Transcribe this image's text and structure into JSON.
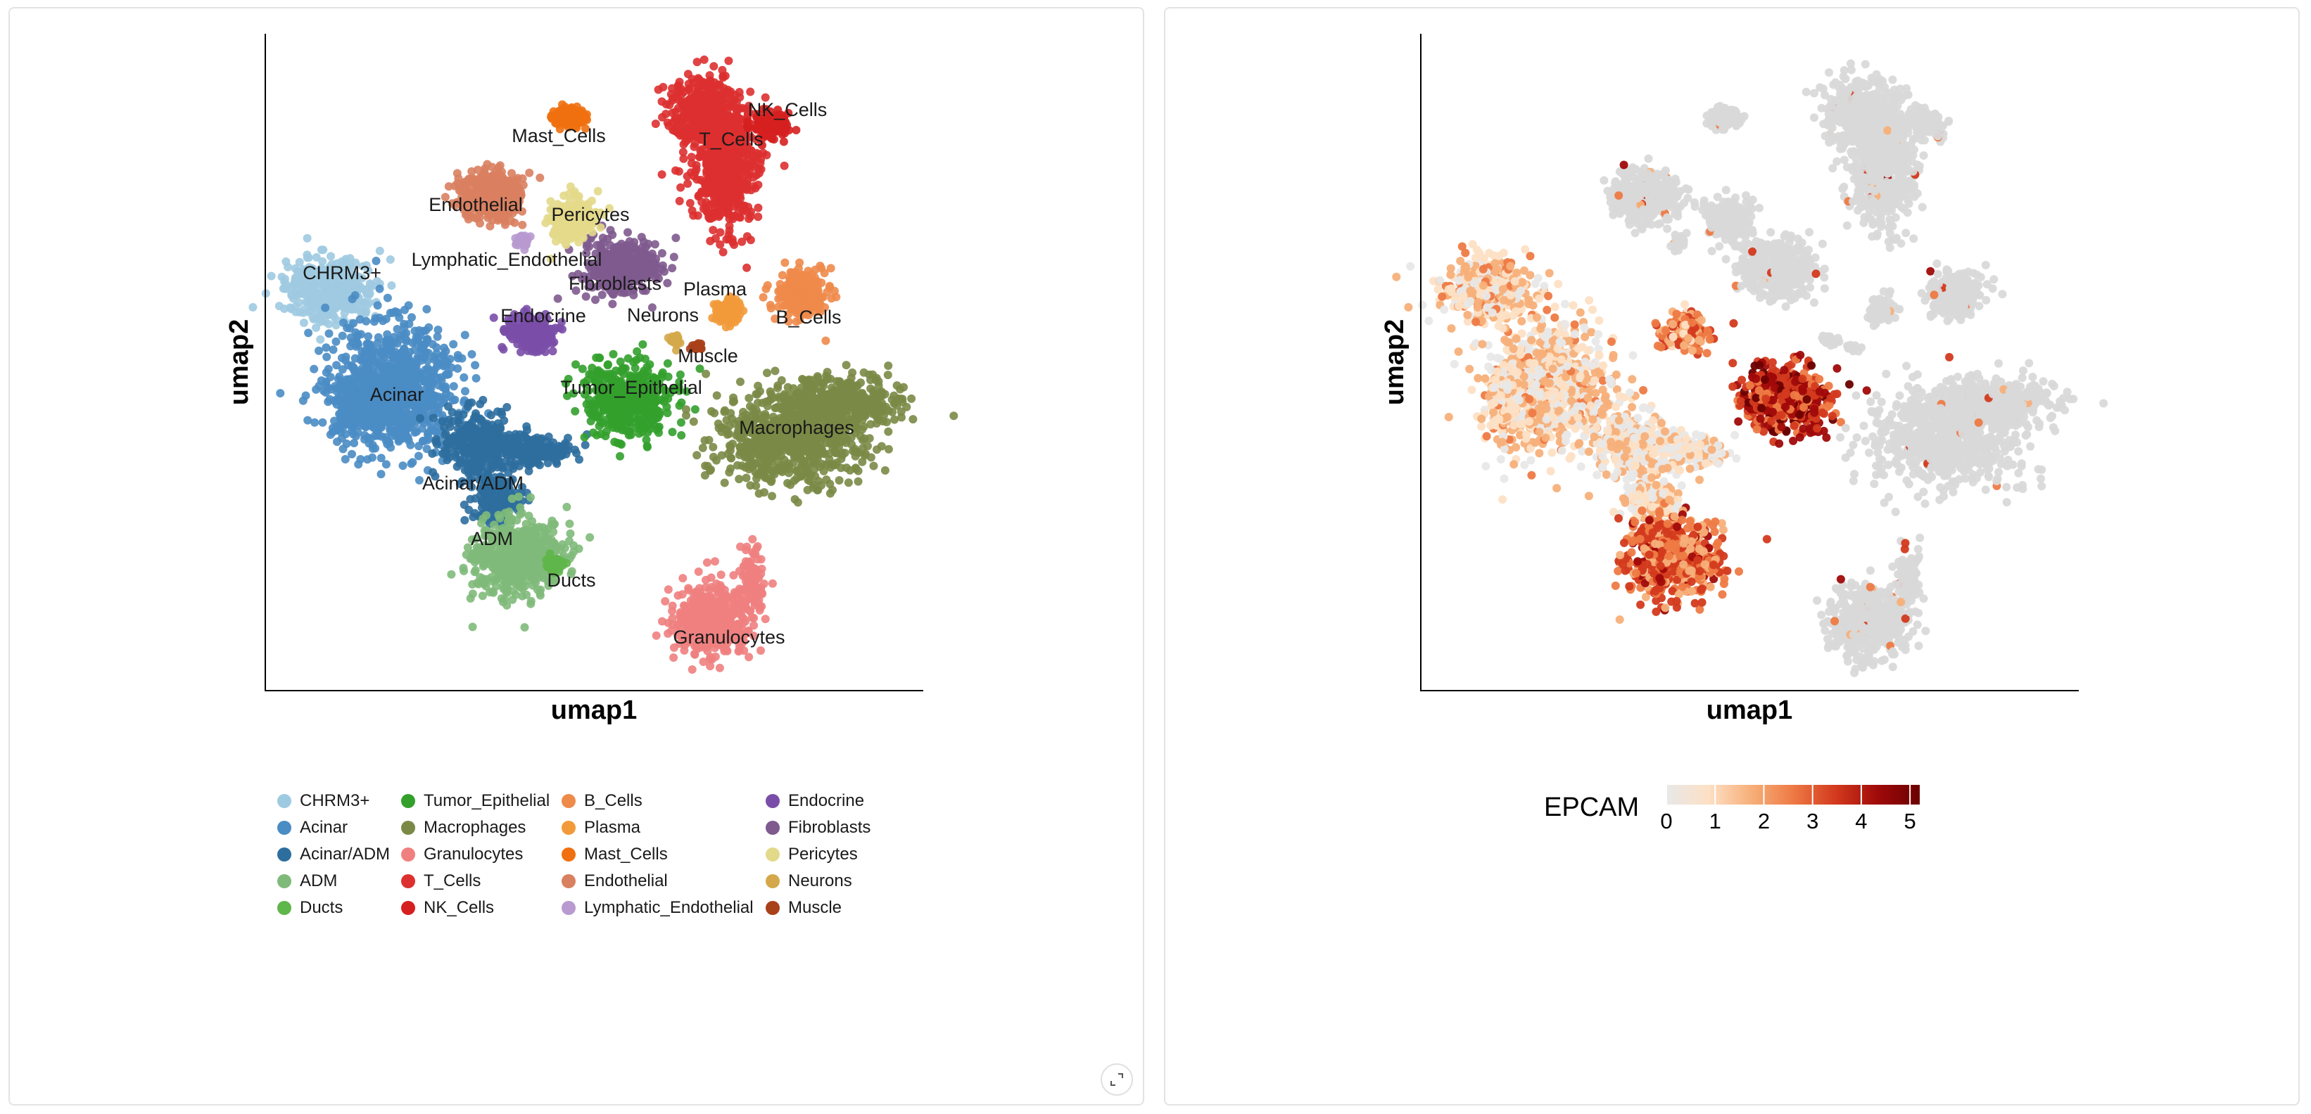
{
  "left_panel": {
    "chart_data": {
      "type": "scatter",
      "x_label": "umap1",
      "y_label": "umap2",
      "clusters": [
        {
          "name": "CHRM3+",
          "color": "#9ecae1",
          "label": "CHRM3+"
        },
        {
          "name": "Acinar",
          "color": "#4a8cc4",
          "label": "Acinar"
        },
        {
          "name": "Acinar/ADM",
          "color": "#2d6e9e",
          "label": "Acinar/ADM"
        },
        {
          "name": "ADM",
          "color": "#7fba7a",
          "label": "ADM"
        },
        {
          "name": "Ducts",
          "color": "#5fb64a",
          "label": "Ducts"
        },
        {
          "name": "Tumor_Epithelial",
          "color": "#33a02c",
          "label": "Tumor_Epithelial"
        },
        {
          "name": "Macrophages",
          "color": "#7a8a46",
          "label": "Macrophages"
        },
        {
          "name": "Granulocytes",
          "color": "#f08080",
          "label": "Granulocytes"
        },
        {
          "name": "T_Cells",
          "color": "#dd3030",
          "label": "T_Cells"
        },
        {
          "name": "NK_Cells",
          "color": "#d62020",
          "label": "NK_Cells"
        },
        {
          "name": "B_Cells",
          "color": "#ee8a4a",
          "label": "B_Cells"
        },
        {
          "name": "Plasma",
          "color": "#f29a3a",
          "label": "Plasma"
        },
        {
          "name": "Mast_Cells",
          "color": "#f07010",
          "label": "Mast_Cells"
        },
        {
          "name": "Endothelial",
          "color": "#d98060",
          "label": "Endothelial"
        },
        {
          "name": "Lymphatic_Endothelial",
          "color": "#b89ad0",
          "label": "Lymphatic_Endothelial"
        },
        {
          "name": "Endocrine",
          "color": "#7a4ea8",
          "label": "Endocrine"
        },
        {
          "name": "Fibroblasts",
          "color": "#7e5a8e",
          "label": "Fibroblasts"
        },
        {
          "name": "Pericytes",
          "color": "#e3d98a",
          "label": "Pericytes"
        },
        {
          "name": "Neurons",
          "color": "#d4a84a",
          "label": "Neurons"
        },
        {
          "name": "Muscle",
          "color": "#a8401a",
          "label": "Muscle"
        }
      ]
    },
    "legend": [
      [
        "CHRM3+",
        "Acinar",
        "Acinar/ADM",
        "ADM",
        "Ducts"
      ],
      [
        "Tumor_Epithelial",
        "Macrophages",
        "Granulocytes",
        "T_Cells",
        "NK_Cells"
      ],
      [
        "B_Cells",
        "Plasma",
        "Mast_Cells",
        "Endothelial",
        "Lymphatic_Endothelial"
      ],
      [
        "Endocrine",
        "Fibroblasts",
        "Pericytes",
        "Neurons",
        "Muscle"
      ]
    ]
  },
  "right_panel": {
    "chart_data": {
      "type": "scatter",
      "x_label": "umap1",
      "y_label": "umap2",
      "color_variable": "EPCAM",
      "colorbar": {
        "title": "EPCAM",
        "ticks": [
          0,
          1,
          2,
          3,
          4,
          5
        ],
        "range": [
          0,
          5.2
        ],
        "colors": [
          "#e8e8e8",
          "#fde0c5",
          "#f7b07a",
          "#ee7a45",
          "#d33a1e",
          "#a00a0a",
          "#6b0000"
        ]
      }
    }
  }
}
